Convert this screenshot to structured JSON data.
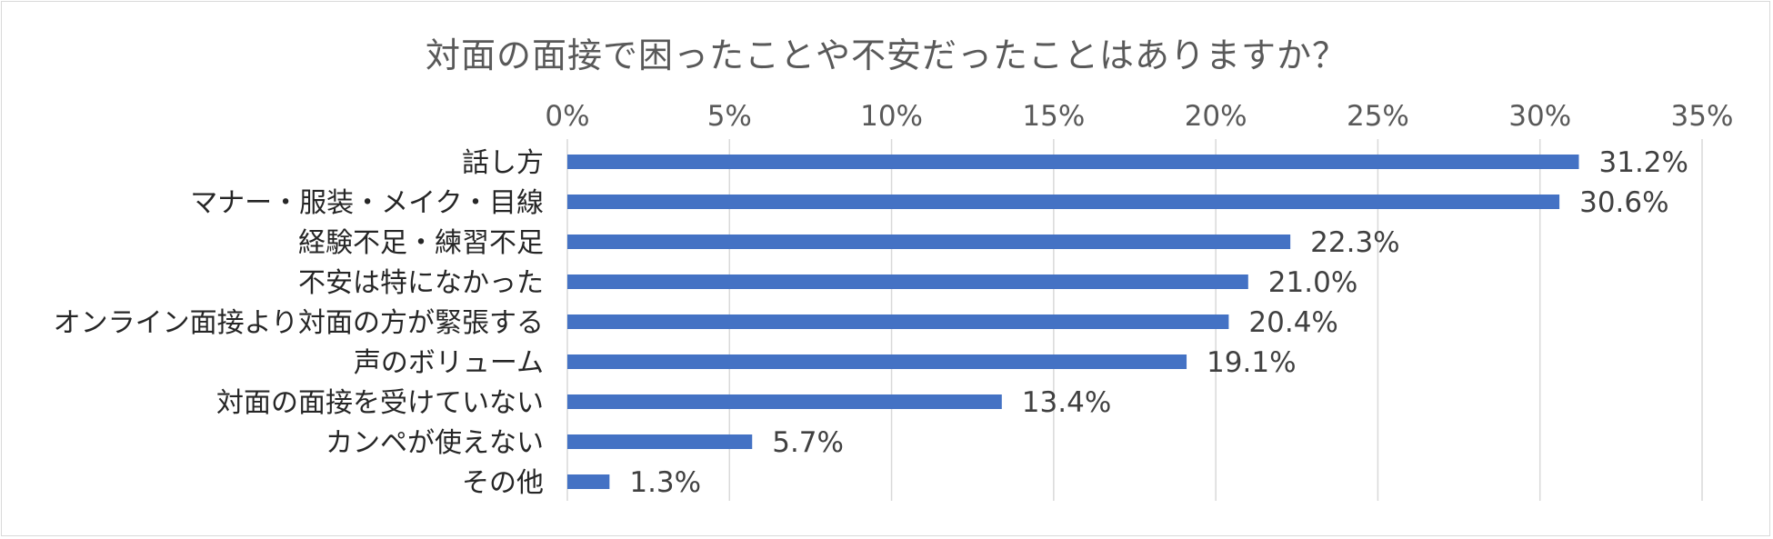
{
  "chart_data": {
    "type": "bar",
    "orientation": "horizontal",
    "title": "対面の面接で困ったことや不安だったことはありますか？",
    "categories": [
      "話し方",
      "マナー・服装・メイク・目線",
      "経験不足・練習不足",
      "不安は特になかった",
      "オンライン面接より対面の方が緊張する",
      "声のボリューム",
      "対面の面接を受けていない",
      "カンペが使えない",
      "その他"
    ],
    "values": [
      31.2,
      30.6,
      22.3,
      21.0,
      20.4,
      19.1,
      13.4,
      5.7,
      1.3
    ],
    "data_labels": [
      "31.2%",
      "30.6%",
      "22.3%",
      "21.0%",
      "20.4%",
      "19.1%",
      "13.4%",
      "5.7%",
      "1.3%"
    ],
    "xlim": [
      0,
      35
    ],
    "xticks": [
      0,
      5,
      10,
      15,
      20,
      25,
      30,
      35
    ],
    "xtick_labels": [
      "0%",
      "5%",
      "10%",
      "15%",
      "20%",
      "25%",
      "30%",
      "35%"
    ],
    "x_axis_position": "top",
    "grid": true,
    "legend": "none",
    "bar_color": "#4472C4",
    "grid_color": "#d9d9d9"
  }
}
